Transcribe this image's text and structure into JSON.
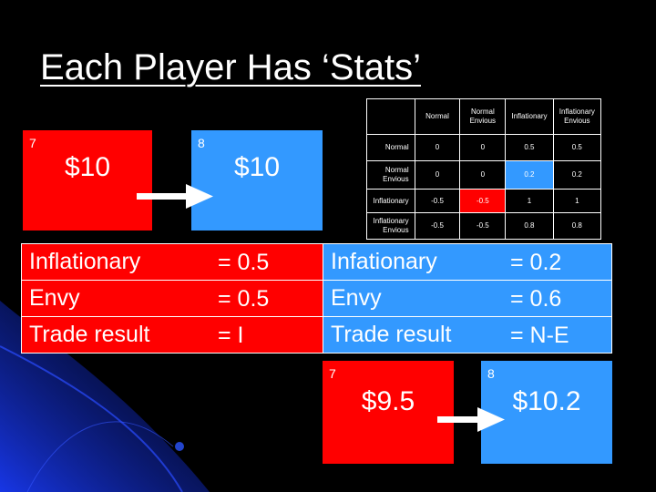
{
  "slide": {
    "title": "Each Player Has ‘Stats’"
  },
  "top_boxes": [
    {
      "number": "7",
      "amount": "$10",
      "color": "#ff0000"
    },
    {
      "number": "8",
      "amount": "$10",
      "color": "#3399ff"
    }
  ],
  "payoff_table": {
    "headers": [
      "",
      "Normal",
      "Normal Envious",
      "Inflationary",
      "Inflationary Envious"
    ],
    "rows": [
      {
        "label": "Normal",
        "values": [
          "0",
          "0",
          "0.5",
          "0.5"
        ]
      },
      {
        "label": "Normal Envious",
        "values": [
          "0",
          "0",
          "0.2",
          "0.2"
        ]
      },
      {
        "label": "Inflationary",
        "values": [
          "-0.5",
          "-0.5",
          "1",
          "1"
        ]
      },
      {
        "label": "Inflationary Envious",
        "values": [
          "-0.5",
          "-0.5",
          "0.8",
          "0.8"
        ]
      }
    ]
  },
  "stats_left": [
    {
      "label": "Inflationary",
      "value": "= 0.5"
    },
    {
      "label": "Envy",
      "value": "= 0.5"
    },
    {
      "label": "Trade result",
      "value": "= I"
    }
  ],
  "stats_right": [
    {
      "label": "Infationary",
      "value": "= 0.2"
    },
    {
      "label": "Envy",
      "value": "= 0.6"
    },
    {
      "label": "Trade result",
      "value": "= N-E"
    }
  ],
  "bottom_boxes": [
    {
      "number": "7",
      "amount": "$9.5",
      "color": "#ff0000"
    },
    {
      "number": "8",
      "amount": "$10.2",
      "color": "#3399ff"
    }
  ],
  "colors": {
    "red": "#ff0000",
    "blue": "#3399ff",
    "background": "#000000"
  }
}
